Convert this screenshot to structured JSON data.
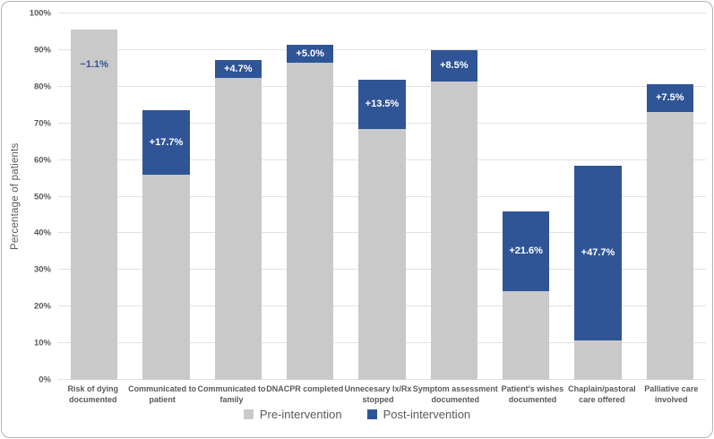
{
  "figure": {
    "background": "#ffffff",
    "border_color": "#b3b3b3"
  },
  "chart_data": {
    "type": "bar",
    "variant": "overlay-difference-columns",
    "title": "",
    "xlabel": "",
    "ylabel": "Percentage of patients",
    "ylim": [
      0,
      100
    ],
    "grid": true,
    "legend_position": "bottom",
    "yticks": [
      "0%",
      "10%",
      "20%",
      "30%",
      "40%",
      "50%",
      "60%",
      "70%",
      "80%",
      "90%",
      "100%"
    ],
    "categories": [
      "Risk of dying\ndocumented",
      "Communicated to\npatient",
      "Communicated to\nfamily",
      "DNACPR completed",
      "Unnecesary Ix/Rx\nstopped",
      "Symptom assessment\ndocumented",
      "Patient's wishes\ndocumented",
      "Chaplain/pastoral\ncare offered",
      "Palliative care\ninvolved"
    ],
    "series": [
      {
        "name": "Pre-intervention",
        "color": "#C9C9C9",
        "values": [
          95.5,
          56.0,
          82.5,
          86.5,
          68.5,
          81.5,
          24.3,
          10.8,
          73.2
        ]
      },
      {
        "name": "Post-intervention",
        "color": "#2F5597",
        "values": [
          94.4,
          73.7,
          87.2,
          91.5,
          82.0,
          90.0,
          45.9,
          58.5,
          80.7
        ]
      }
    ],
    "difference_labels": [
      "−1.1%",
      "+17.7%",
      "+4.7%",
      "+5.0%",
      "+13.5%",
      "+8.5%",
      "+21.6%",
      "+47.7%",
      "+7.5%"
    ],
    "colors": {
      "grid": "#e2e2e2",
      "axis_text": "#595959",
      "label_on_bar": "#ffffff",
      "negative_label": "#2F5597"
    }
  }
}
